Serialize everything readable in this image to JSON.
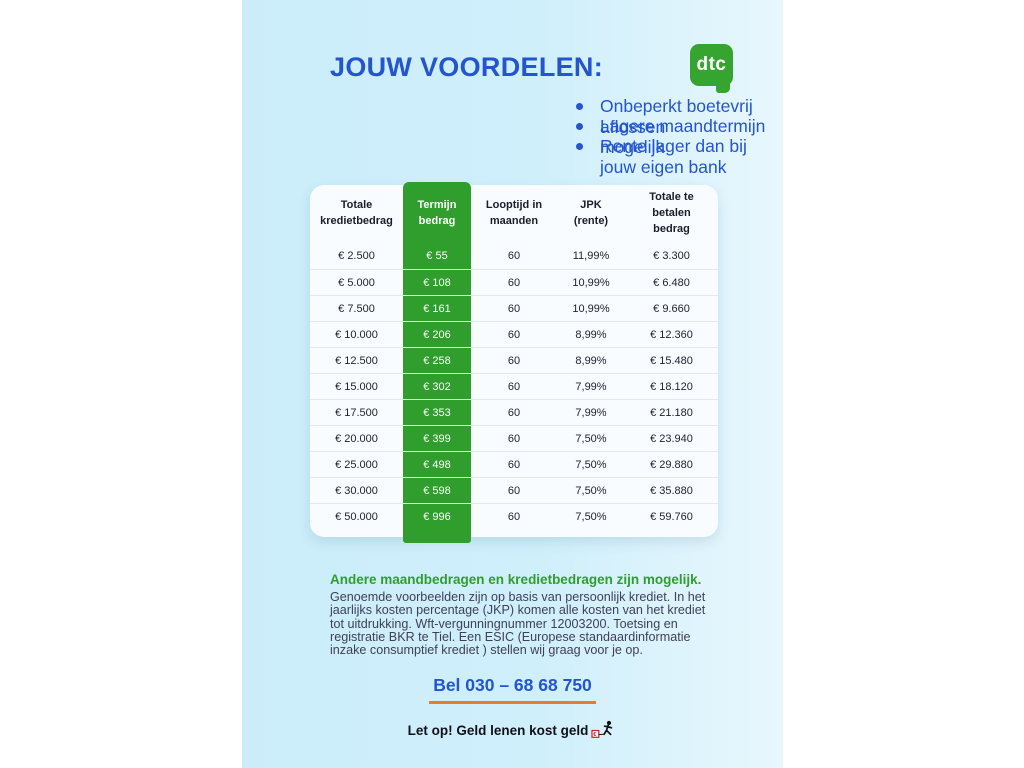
{
  "page": {
    "title": "JOUW VOORDELEN:",
    "bullets": [
      "Onbeperkt boetevrij aflossen",
      "Lagere maandtermijn mogelijk",
      "Rente lager dan bij jouw eigen bank"
    ],
    "logo_text": "dtc",
    "colors": {
      "accent_blue": "#2355cf",
      "accent_green": "#2f9e2c",
      "underline_orange": "#e87a33",
      "panel_blue": "#cbedfa"
    }
  },
  "table": {
    "headers": [
      "Totale kredietbedrag",
      "Termijn bedrag",
      "Looptijd in maanden",
      "JPK (rente)",
      "Totale te betalen bedrag"
    ],
    "highlight_column": 1,
    "rows": [
      [
        "€ 2.500",
        "€ 55",
        "60",
        "11,99%",
        "€ 3.300"
      ],
      [
        "€ 5.000",
        "€ 108",
        "60",
        "10,99%",
        "€ 6.480"
      ],
      [
        "€ 7.500",
        "€ 161",
        "60",
        "10,99%",
        "€ 9.660"
      ],
      [
        "€ 10.000",
        "€ 206",
        "60",
        "8,99%",
        "€ 12.360"
      ],
      [
        "€ 12.500",
        "€ 258",
        "60",
        "8,99%",
        "€ 15.480"
      ],
      [
        "€ 15.000",
        "€ 302",
        "60",
        "7,99%",
        "€ 18.120"
      ],
      [
        "€ 17.500",
        "€ 353",
        "60",
        "7,99%",
        "€ 21.180"
      ],
      [
        "€ 20.000",
        "€ 399",
        "60",
        "7,50%",
        "€ 23.940"
      ],
      [
        "€ 25.000",
        "€ 498",
        "60",
        "7,50%",
        "€ 29.880"
      ],
      [
        "€ 30.000",
        "€ 598",
        "60",
        "7,50%",
        "€ 35.880"
      ],
      [
        "€ 50.000",
        "€ 996",
        "60",
        "7,50%",
        "€ 59.760"
      ]
    ]
  },
  "footer": {
    "highlight": "Andere maandbedragen en kredietbedragen zijn mogelijk.",
    "disclaimer": "Genoemde voorbeelden zijn op basis van persoonlijk krediet. In het jaarlijks kosten percentage (JKP) komen alle kosten van het krediet tot uitdrukking. Wft-vergunningnummer 12003200. Toetsing en registratie BKR te Tiel. Een ESIC (Europese standaardinformatie inzake consumptief krediet ) stellen wij graag voor je op.",
    "phone": "Bel 030 – 68 68 750",
    "warning": "Let op! Geld lenen kost geld"
  }
}
